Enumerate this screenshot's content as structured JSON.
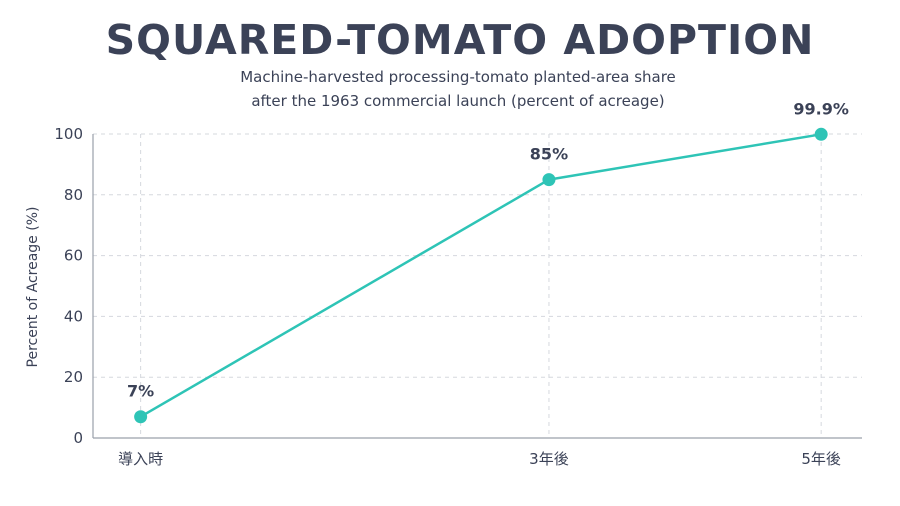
{
  "chart_data": {
    "type": "line",
    "title": "SQUARED-TOMATO ADOPTION",
    "subtitle_lines": [
      "Machine-harvested processing-tomato planted-area share",
      "after the 1963 commercial launch (percent of acreage)"
    ],
    "xlabel": "",
    "ylabel": "Percent of Acreage (%)",
    "categories": [
      "導入時",
      "3年後",
      "5年後"
    ],
    "x_positions": [
      0,
      3,
      5
    ],
    "series": [
      {
        "values": [
          7,
          85,
          99.9
        ]
      }
    ],
    "data_labels": [
      "7%",
      "85%",
      "99.9%"
    ],
    "ylim": [
      0,
      100
    ],
    "yticks": [
      0,
      20,
      40,
      60,
      80,
      100
    ],
    "grid": true,
    "legend": "none",
    "colors": {
      "line": "#2ec4b6",
      "text": "#3b4257",
      "grid": "#d5d8de"
    }
  }
}
